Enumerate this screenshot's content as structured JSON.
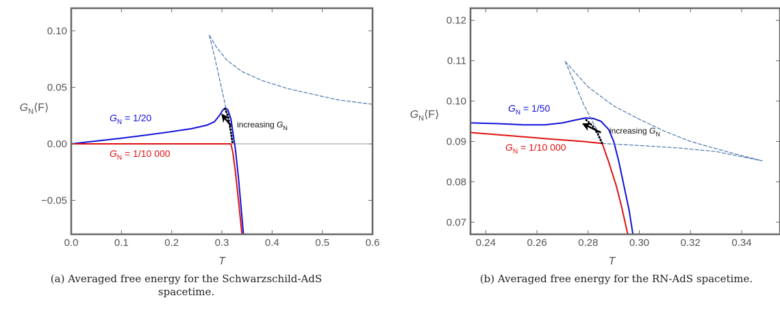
{
  "colors": {
    "blue": "#1010d8",
    "red": "#e01010",
    "dashed": "#4a76b0",
    "frame": "#666666",
    "zero_line": "#999999"
  },
  "chart_data": [
    {
      "type": "line",
      "title": "",
      "xlabel": "T",
      "ylabel": {
        "main": "G",
        "sub": "N",
        "rest": "⟨F⟩"
      },
      "xlim": [
        0.0,
        0.6
      ],
      "ylim": [
        -0.08,
        0.12
      ],
      "x_ticks": [
        "0.0",
        "0.1",
        "0.2",
        "0.3",
        "0.4",
        "0.5",
        "0.6"
      ],
      "x_tick_values": [
        0.0,
        0.1,
        0.2,
        0.3,
        0.4,
        0.5,
        0.6
      ],
      "y_ticks": [
        "−0.05",
        "0.00",
        "0.05",
        "0.10"
      ],
      "y_tick_values": [
        -0.05,
        0.0,
        0.05,
        0.1
      ],
      "horizontal_reference": 0.0,
      "series": [
        {
          "style": "solid",
          "color": "#1010d8",
          "points": [
            [
              0.0,
              0.0
            ],
            [
              0.05,
              0.0025
            ],
            [
              0.1,
              0.005
            ],
            [
              0.15,
              0.0078
            ],
            [
              0.2,
              0.0108
            ],
            [
              0.24,
              0.0135
            ],
            [
              0.27,
              0.0165
            ],
            [
              0.285,
              0.0195
            ],
            [
              0.295,
              0.025
            ],
            [
              0.302,
              0.03
            ],
            [
              0.307,
              0.0318
            ],
            [
              0.312,
              0.03
            ],
            [
              0.318,
              0.022
            ],
            [
              0.322,
              0.01
            ],
            [
              0.327,
              -0.005
            ],
            [
              0.333,
              -0.03
            ],
            [
              0.338,
              -0.055
            ],
            [
              0.343,
              -0.08
            ]
          ]
        },
        {
          "style": "solid",
          "color": "#e01010",
          "points": [
            [
              0.0,
              0.0
            ],
            [
              0.1,
              0.0
            ],
            [
              0.2,
              0.0
            ],
            [
              0.3,
              0.0
            ],
            [
              0.318,
              0.0
            ],
            [
              0.322,
              -0.008
            ],
            [
              0.327,
              -0.025
            ],
            [
              0.333,
              -0.05
            ],
            [
              0.34,
              -0.08
            ]
          ]
        },
        {
          "style": "dashed",
          "color": "#4a76b0",
          "points": [
            [
              0.275,
              0.096
            ],
            [
              0.285,
              0.078
            ],
            [
              0.295,
              0.058
            ],
            [
              0.305,
              0.038
            ],
            [
              0.313,
              0.02
            ],
            [
              0.319,
              0.005
            ],
            [
              0.322,
              0.0
            ]
          ]
        },
        {
          "style": "dashed",
          "color": "#4a76b0",
          "points": [
            [
              0.275,
              0.096
            ],
            [
              0.29,
              0.085
            ],
            [
              0.31,
              0.074
            ],
            [
              0.34,
              0.064
            ],
            [
              0.38,
              0.056
            ],
            [
              0.43,
              0.049
            ],
            [
              0.48,
              0.044
            ],
            [
              0.53,
              0.039
            ],
            [
              0.6,
              0.035
            ]
          ]
        },
        {
          "style": "dotted",
          "color": "#000000",
          "points": [
            [
              0.306,
              0.031
            ],
            [
              0.312,
              0.025
            ],
            [
              0.316,
              0.016
            ],
            [
              0.319,
              0.008
            ],
            [
              0.321,
              0.001
            ]
          ]
        }
      ],
      "labels": {
        "blue": {
          "main": "G",
          "sub": "N",
          "rest": " = 1/20"
        },
        "red": {
          "main": "G",
          "sub": "N",
          "rest": " = 1/10 000"
        },
        "increasing": {
          "pre": "increasing ",
          "main": "G",
          "sub": "N"
        }
      },
      "arrow": {
        "from": [
          0.318,
          0.016
        ],
        "to": [
          0.302,
          0.025
        ]
      },
      "caption": [
        "(a) Averaged free energy for the Schwarzschild-AdS",
        "spacetime."
      ]
    },
    {
      "type": "line",
      "title": "",
      "xlabel": "T",
      "ylabel": {
        "main": "G",
        "sub": "N",
        "rest": "⟨F⟩"
      },
      "xlim": [
        0.234,
        0.355
      ],
      "ylim": [
        0.067,
        0.123
      ],
      "x_ticks": [
        "0.24",
        "0.26",
        "0.28",
        "0.30",
        "0.32",
        "0.34"
      ],
      "x_tick_values": [
        0.24,
        0.26,
        0.28,
        0.3,
        0.32,
        0.34
      ],
      "y_ticks": [
        "0.07",
        "0.08",
        "0.09",
        "0.10",
        "0.11",
        "0.12"
      ],
      "y_tick_values": [
        0.07,
        0.08,
        0.09,
        0.1,
        0.11,
        0.12
      ],
      "series": [
        {
          "style": "solid",
          "color": "#1010d8",
          "points": [
            [
              0.234,
              0.0946
            ],
            [
              0.245,
              0.0944
            ],
            [
              0.255,
              0.0941
            ],
            [
              0.263,
              0.0941
            ],
            [
              0.27,
              0.0946
            ],
            [
              0.275,
              0.0953
            ],
            [
              0.279,
              0.0958
            ],
            [
              0.282,
              0.0957
            ],
            [
              0.285,
              0.095
            ],
            [
              0.288,
              0.093
            ],
            [
              0.29,
              0.09
            ],
            [
              0.292,
              0.085
            ],
            [
              0.294,
              0.079
            ],
            [
              0.296,
              0.073
            ],
            [
              0.2975,
              0.067
            ]
          ]
        },
        {
          "style": "solid",
          "color": "#e01010",
          "points": [
            [
              0.234,
              0.0922
            ],
            [
              0.25,
              0.0914
            ],
            [
              0.265,
              0.0906
            ],
            [
              0.278,
              0.09
            ],
            [
              0.2855,
              0.0895
            ],
            [
              0.288,
              0.085
            ],
            [
              0.291,
              0.079
            ],
            [
              0.293,
              0.074
            ],
            [
              0.2955,
              0.067
            ]
          ]
        },
        {
          "style": "dashed",
          "color": "#4a76b0",
          "points": [
            [
              0.271,
              0.1098
            ],
            [
              0.2745,
              0.1048
            ],
            [
              0.278,
              0.0995
            ],
            [
              0.281,
              0.0958
            ],
            [
              0.2835,
              0.0928
            ],
            [
              0.2855,
              0.0895
            ]
          ]
        },
        {
          "style": "dashed",
          "color": "#4a76b0",
          "points": [
            [
              0.271,
              0.1098
            ],
            [
              0.28,
              0.1035
            ],
            [
              0.29,
              0.0988
            ],
            [
              0.3,
              0.0955
            ],
            [
              0.31,
              0.0925
            ],
            [
              0.32,
              0.09
            ],
            [
              0.33,
              0.0882
            ],
            [
              0.34,
              0.0865
            ],
            [
              0.348,
              0.0852
            ]
          ]
        },
        {
          "style": "dashed",
          "color": "#4a76b0",
          "points": [
            [
              0.2855,
              0.0895
            ],
            [
              0.3,
              0.089
            ],
            [
              0.315,
              0.0884
            ],
            [
              0.33,
              0.0875
            ],
            [
              0.348,
              0.0852
            ]
          ]
        },
        {
          "style": "dotted",
          "color": "#000000",
          "points": [
            [
              0.2793,
              0.0953
            ],
            [
              0.2818,
              0.0938
            ],
            [
              0.2838,
              0.0918
            ],
            [
              0.2855,
              0.0895
            ]
          ]
        }
      ],
      "labels": {
        "blue": {
          "main": "G",
          "sub": "N",
          "rest": " = 1/50"
        },
        "red": {
          "main": "G",
          "sub": "N",
          "rest": " = 1/10 000"
        },
        "increasing": {
          "pre": "increasing ",
          "main": "G",
          "sub": "N"
        }
      },
      "arrow": {
        "from": [
          0.285,
          0.0922
        ],
        "to": [
          0.2785,
          0.0942
        ]
      },
      "caption": [
        "(b) Averaged free energy for the RN-AdS spacetime."
      ]
    }
  ]
}
